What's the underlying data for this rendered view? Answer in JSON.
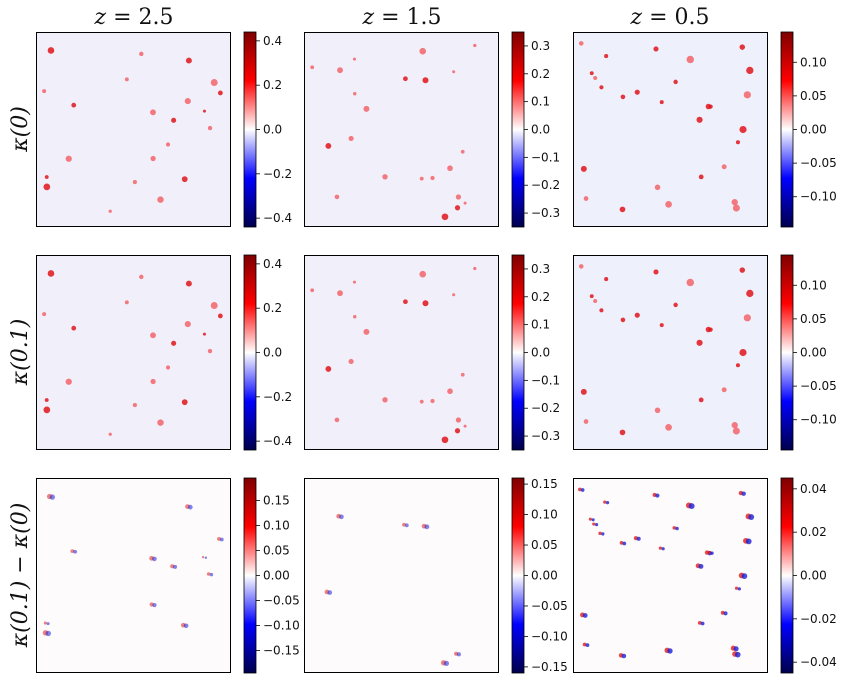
{
  "chart_data": {
    "type": "heatmap",
    "columns": [
      {
        "title": "z = 2.5",
        "title_math": [
          "z",
          " = 2.5"
        ]
      },
      {
        "title": "z = 1.5",
        "title_math": [
          "z",
          " = 1.5"
        ]
      },
      {
        "title": "z = 0.5",
        "title_math": [
          "z",
          " = 0.5"
        ]
      }
    ],
    "rows": [
      {
        "label": "κ(0)"
      },
      {
        "label": "κ(0.1)"
      },
      {
        "label": "κ(0.1) − κ(0)"
      }
    ],
    "colormap": "seismic",
    "colormap_stops": [
      "#00004c",
      "#0000ff",
      "#ffffff",
      "#ff0000",
      "#7f0000"
    ],
    "panels": [
      {
        "row": 0,
        "col": 0,
        "vmin": -0.44,
        "vmax": 0.44,
        "ticks": [
          {
            "v": 0.4,
            "label": "0.4"
          },
          {
            "v": 0.2,
            "label": "0.2"
          },
          {
            "v": 0.0,
            "label": "0.0"
          },
          {
            "v": -0.2,
            "label": "−0.2"
          },
          {
            "v": -0.4,
            "label": "−0.4"
          }
        ]
      },
      {
        "row": 0,
        "col": 1,
        "vmin": -0.35,
        "vmax": 0.35,
        "ticks": [
          {
            "v": 0.3,
            "label": "0.3"
          },
          {
            "v": 0.2,
            "label": "0.2"
          },
          {
            "v": 0.1,
            "label": "0.1"
          },
          {
            "v": 0.0,
            "label": "0.0"
          },
          {
            "v": -0.1,
            "label": "−0.1"
          },
          {
            "v": -0.2,
            "label": "−0.2"
          },
          {
            "v": -0.3,
            "label": "−0.3"
          }
        ]
      },
      {
        "row": 0,
        "col": 2,
        "vmin": -0.145,
        "vmax": 0.145,
        "ticks": [
          {
            "v": 0.1,
            "label": "0.10"
          },
          {
            "v": 0.05,
            "label": "0.05"
          },
          {
            "v": 0.0,
            "label": "0.00"
          },
          {
            "v": -0.05,
            "label": "−0.05"
          },
          {
            "v": -0.1,
            "label": "−0.10"
          }
        ]
      },
      {
        "row": 1,
        "col": 0,
        "vmin": -0.44,
        "vmax": 0.44,
        "ticks": [
          {
            "v": 0.4,
            "label": "0.4"
          },
          {
            "v": 0.2,
            "label": "0.2"
          },
          {
            "v": 0.0,
            "label": "0.0"
          },
          {
            "v": -0.2,
            "label": "−0.2"
          },
          {
            "v": -0.4,
            "label": "−0.4"
          }
        ]
      },
      {
        "row": 1,
        "col": 1,
        "vmin": -0.35,
        "vmax": 0.35,
        "ticks": [
          {
            "v": 0.3,
            "label": "0.3"
          },
          {
            "v": 0.2,
            "label": "0.2"
          },
          {
            "v": 0.1,
            "label": "0.1"
          },
          {
            "v": 0.0,
            "label": "0.0"
          },
          {
            "v": -0.1,
            "label": "−0.1"
          },
          {
            "v": -0.2,
            "label": "−0.2"
          },
          {
            "v": -0.3,
            "label": "−0.3"
          }
        ]
      },
      {
        "row": 1,
        "col": 2,
        "vmin": -0.145,
        "vmax": 0.145,
        "ticks": [
          {
            "v": 0.1,
            "label": "0.10"
          },
          {
            "v": 0.05,
            "label": "0.05"
          },
          {
            "v": 0.0,
            "label": "0.00"
          },
          {
            "v": -0.05,
            "label": "−0.05"
          },
          {
            "v": -0.1,
            "label": "−0.10"
          }
        ]
      },
      {
        "row": 2,
        "col": 0,
        "vmin": -0.195,
        "vmax": 0.195,
        "ticks": [
          {
            "v": 0.15,
            "label": "0.15"
          },
          {
            "v": 0.1,
            "label": "0.10"
          },
          {
            "v": 0.05,
            "label": "0.05"
          },
          {
            "v": 0.0,
            "label": "0.00"
          },
          {
            "v": -0.05,
            "label": "−0.05"
          },
          {
            "v": -0.1,
            "label": "−0.10"
          },
          {
            "v": -0.15,
            "label": "−0.15"
          }
        ]
      },
      {
        "row": 2,
        "col": 1,
        "vmin": -0.16,
        "vmax": 0.16,
        "ticks": [
          {
            "v": 0.15,
            "label": "0.15"
          },
          {
            "v": 0.1,
            "label": "0.10"
          },
          {
            "v": 0.05,
            "label": "0.05"
          },
          {
            "v": 0.0,
            "label": "0.00"
          },
          {
            "v": -0.05,
            "label": "−0.05"
          },
          {
            "v": -0.1,
            "label": "−0.10"
          },
          {
            "v": -0.15,
            "label": "−0.15"
          }
        ]
      },
      {
        "row": 2,
        "col": 2,
        "vmin": -0.045,
        "vmax": 0.045,
        "ticks": [
          {
            "v": 0.04,
            "label": "0.04"
          },
          {
            "v": 0.02,
            "label": "0.02"
          },
          {
            "v": 0.0,
            "label": "0.00"
          },
          {
            "v": -0.02,
            "label": "−0.02"
          },
          {
            "v": -0.04,
            "label": "−0.04"
          }
        ]
      }
    ]
  }
}
